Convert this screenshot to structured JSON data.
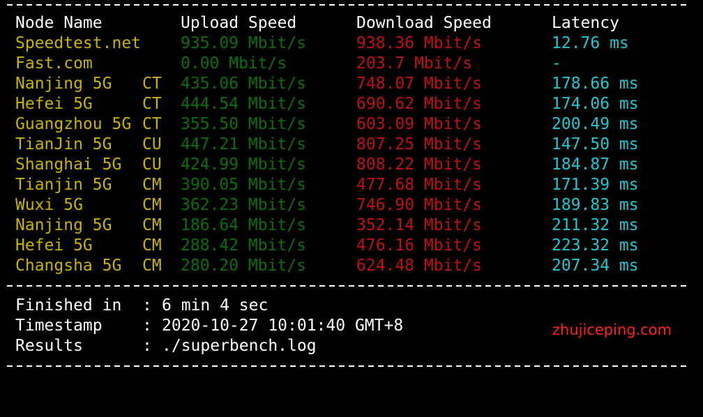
{
  "headers": {
    "node": "Node Name",
    "upload": "Upload Speed",
    "download": "Download Speed",
    "latency": "Latency"
  },
  "rows": [
    {
      "node": "Speedtest.net",
      "isp": "",
      "upload": "935.09 Mbit/s",
      "download": "938.36 Mbit/s",
      "latency": "12.76 ms"
    },
    {
      "node": "Fast.com",
      "isp": "",
      "upload": "0.00 Mbit/s",
      "download": "203.7 Mbit/s",
      "latency": "-"
    },
    {
      "node": "Nanjing 5G",
      "isp": "CT",
      "upload": "435.06 Mbit/s",
      "download": "748.07 Mbit/s",
      "latency": "178.66 ms"
    },
    {
      "node": "Hefei 5G",
      "isp": "CT",
      "upload": "444.54 Mbit/s",
      "download": "690.62 Mbit/s",
      "latency": "174.06 ms"
    },
    {
      "node": "Guangzhou 5G",
      "isp": "CT",
      "upload": "355.50 Mbit/s",
      "download": "603.09 Mbit/s",
      "latency": "200.49 ms"
    },
    {
      "node": "TianJin 5G",
      "isp": "CU",
      "upload": "447.21 Mbit/s",
      "download": "807.25 Mbit/s",
      "latency": "147.50 ms"
    },
    {
      "node": "Shanghai 5G",
      "isp": "CU",
      "upload": "424.99 Mbit/s",
      "download": "808.22 Mbit/s",
      "latency": "184.87 ms"
    },
    {
      "node": "Tianjin 5G",
      "isp": "CM",
      "upload": "390.05 Mbit/s",
      "download": "477.68 Mbit/s",
      "latency": "171.39 ms"
    },
    {
      "node": "Wuxi 5G",
      "isp": "CM",
      "upload": "362.23 Mbit/s",
      "download": "746.90 Mbit/s",
      "latency": "189.83 ms"
    },
    {
      "node": "Nanjing 5G",
      "isp": "CM",
      "upload": "186.64 Mbit/s",
      "download": "352.14 Mbit/s",
      "latency": "211.32 ms"
    },
    {
      "node": "Hefei 5G",
      "isp": "CM",
      "upload": "288.42 Mbit/s",
      "download": "476.16 Mbit/s",
      "latency": "223.32 ms"
    },
    {
      "node": "Changsha 5G",
      "isp": "CM",
      "upload": "280.20 Mbit/s",
      "download": "624.48 Mbit/s",
      "latency": "207.34 ms"
    }
  ],
  "footer": [
    {
      "key": "Finished in",
      "sep": ":",
      "value": "6 min 4 sec"
    },
    {
      "key": "Timestamp",
      "sep": ":",
      "value": "2020-10-27 10:01:40 GMT+8"
    },
    {
      "key": "Results",
      "sep": ":",
      "value": "./superbench.log"
    }
  ],
  "watermark": "zhujiceping.com",
  "colors": {
    "node": "#c8b400",
    "upload": "#0a6e0a",
    "download": "#c01010",
    "latency": "#1ec8d2",
    "watermark": "#ff2020"
  }
}
